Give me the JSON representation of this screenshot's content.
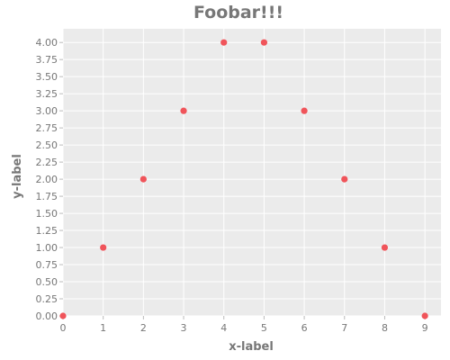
{
  "chart_data": {
    "type": "scatter",
    "title": "Foobar!!!",
    "xlabel": "x-label",
    "ylabel": "y-label",
    "xlim": [
      0,
      9.4
    ],
    "ylim": [
      0,
      4.2
    ],
    "xticks": [
      0,
      1,
      2,
      3,
      4,
      5,
      6,
      7,
      8,
      9
    ],
    "xtick_labels": [
      "0",
      "1",
      "2",
      "3",
      "4",
      "5",
      "6",
      "7",
      "8",
      "9"
    ],
    "yticks": [
      0,
      0.25,
      0.5,
      0.75,
      1.0,
      1.25,
      1.5,
      1.75,
      2.0,
      2.25,
      2.5,
      2.75,
      3.0,
      3.25,
      3.5,
      3.75,
      4.0
    ],
    "ytick_labels": [
      "0.00",
      "0.25",
      "0.50",
      "0.75",
      "1.00",
      "1.25",
      "1.50",
      "1.75",
      "2.00",
      "2.25",
      "2.50",
      "2.75",
      "3.00",
      "3.25",
      "3.50",
      "3.75",
      "4.00"
    ],
    "grid": true,
    "series": [
      {
        "x": [
          0,
          1,
          2,
          3,
          4,
          5,
          6,
          7,
          8,
          9
        ],
        "y": [
          0,
          1,
          2,
          3,
          4,
          4,
          3,
          2,
          1,
          0
        ],
        "color": "#f0545a"
      }
    ],
    "colors": {
      "plot_background": "#ebebeb",
      "grid": "#ffffff",
      "text": "#777777",
      "tick_mark": "#bbbbbb"
    }
  }
}
